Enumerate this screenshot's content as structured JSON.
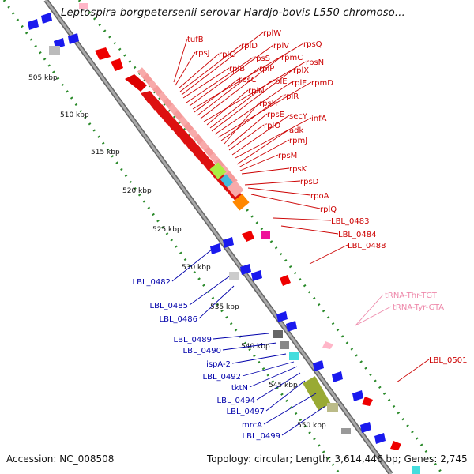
{
  "title": "Leptospira borgpetersenii serovar Hardjo-bovis L550 chromoso...",
  "accession": "Accession: NC_008508",
  "topology": "Topology: circular; Length: 3,614,446 bp; Genes: 2,745",
  "ticks": [
    "505 kbp",
    "510 kbp",
    "515 kbp",
    "520 kbp",
    "525 kbp",
    "530 kbp",
    "535 kbp",
    "540 kbp",
    "545 kbp",
    "550 kbp"
  ],
  "colors": {
    "forward_label": "#cc0000",
    "reverse_label": "#0000aa",
    "trna_label": "#ee88aa",
    "backbone": "#888888",
    "tick_mark": "#228822"
  },
  "forward_labels": [
    "tufB",
    "rpsJ",
    "rplC",
    "rplD",
    "rplW",
    "rplB",
    "rpsS",
    "rplV",
    "rpsQ",
    "rpsC",
    "rplP",
    "rpmC",
    "rpsN",
    "rplN",
    "rplE",
    "rplX",
    "rplF",
    "rpmD",
    "rplR",
    "rpsH",
    "rpsE",
    "rplO",
    "secY",
    "infA",
    "adk",
    "rpmJ",
    "rpsM",
    "rpsK",
    "rpsD",
    "rpoA",
    "rplQ",
    "LBL_0483",
    "LBL_0484",
    "LBL_0488",
    "LBL_0501"
  ],
  "trna_labels": [
    "tRNA-Thr-TGT",
    "tRNA-Tyr-GTA"
  ],
  "reverse_labels": [
    "LBL_0482",
    "LBL_0485",
    "LBL_0486",
    "LBL_0489",
    "LBL_0490",
    "ispA-2",
    "LBL_0492",
    "tktN",
    "LBL_0494",
    "LBL_0497",
    "mrcA",
    "LBL_0499"
  ]
}
